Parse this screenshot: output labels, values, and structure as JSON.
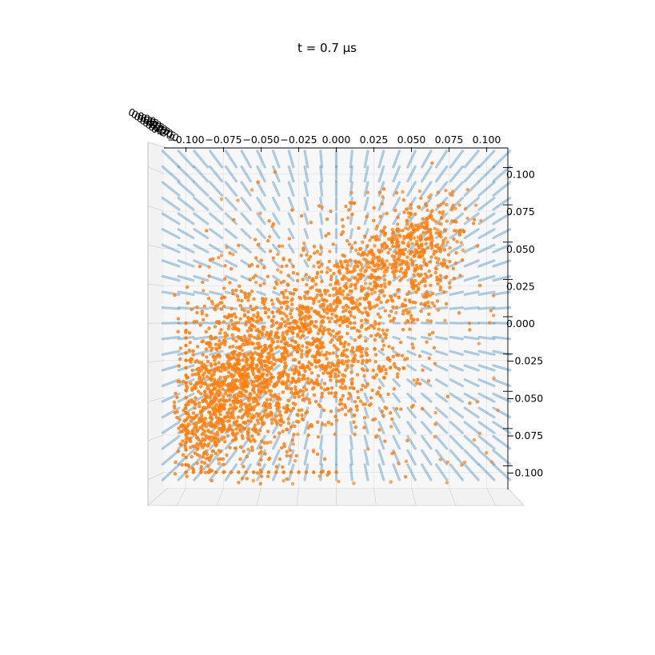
{
  "chart_data": {
    "type": "scatter",
    "projection": "3d",
    "title": "t = 0.7 μs",
    "xlabel": "",
    "ylabel": "",
    "zlabel": "",
    "xlim": [
      -0.11,
      0.11
    ],
    "ylim": [
      -0.11,
      0.11
    ],
    "x_ticks": [
      -0.1,
      -0.075,
      -0.05,
      -0.025,
      0.0,
      0.025,
      0.05,
      0.075,
      0.1
    ],
    "x_tick_labels": [
      "−0.100",
      "−0.075",
      "−0.050",
      "−0.025",
      "0.000",
      "0.025",
      "0.050",
      "0.075",
      "0.100"
    ],
    "y_ticks": [
      0.1,
      0.075,
      0.05,
      0.025,
      0.0,
      -0.025,
      -0.05,
      -0.075,
      -0.1
    ],
    "y_tick_labels": [
      "0.100",
      "0.075",
      "0.050",
      "0.025",
      "0.000",
      "−0.025",
      "−0.050",
      "−0.075",
      "−0.100"
    ],
    "z_tick_labels": [
      "0.000",
      "0.025",
      "0.050",
      "0.075",
      "0.100",
      "0.125",
      "0.150",
      "0.175",
      "0.200"
    ],
    "grid": true,
    "series": [
      {
        "color": "#1f77b4",
        "alpha": 0.35,
        "kind": "regular 3d lattice (field grid)",
        "lattice_range": [
          -0.11,
          0.11
        ],
        "lattice_step": 0.01
      },
      {
        "color": "#ff7f0e",
        "kind": "particle cloud",
        "clusters": [
          {
            "center": [
              -0.06,
              -0.035
            ],
            "spread": [
              0.022,
              0.028
            ],
            "weight": 0.36
          },
          {
            "center": [
              -0.005,
              -0.01
            ],
            "spread": [
              0.03,
              0.032
            ],
            "weight": 0.36
          },
          {
            "center": [
              0.05,
              0.04
            ],
            "spread": [
              0.02,
              0.02
            ],
            "weight": 0.14
          },
          {
            "center": [
              -0.085,
              -0.065
            ],
            "spread": [
              0.012,
              0.02
            ],
            "weight": 0.14
          }
        ],
        "diagonal_streak": {
          "from": [
            0.0,
            0.02
          ],
          "to": [
            0.075,
            0.075
          ]
        },
        "bottom_row_y": -0.1,
        "bottom_row_x_range": [
          -0.1,
          0.0
        ],
        "left_column_x": -0.1,
        "left_column_y_range": [
          -0.1,
          0.0
        ]
      }
    ]
  }
}
